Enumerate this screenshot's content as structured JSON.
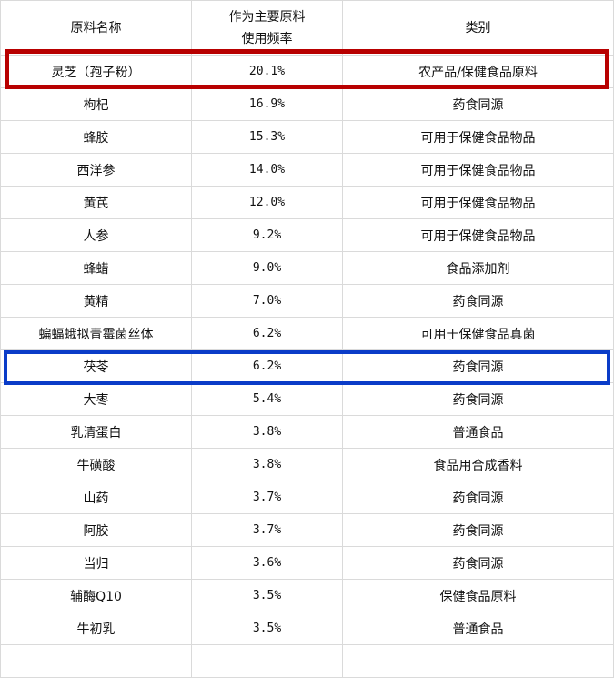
{
  "header": {
    "name": "原料名称",
    "freq_line1": "作为主要原料",
    "freq_line2": "使用频率",
    "category": "类别"
  },
  "rows": [
    {
      "name": "灵芝（孢子粉）",
      "freq": "20.1%",
      "category": "农产品/保健食品原料"
    },
    {
      "name": "枸杞",
      "freq": "16.9%",
      "category": "药食同源"
    },
    {
      "name": "蜂胶",
      "freq": "15.3%",
      "category": "可用于保健食品物品"
    },
    {
      "name": "西洋参",
      "freq": "14.0%",
      "category": "可用于保健食品物品"
    },
    {
      "name": "黄芪",
      "freq": "12.0%",
      "category": "可用于保健食品物品"
    },
    {
      "name": "人参",
      "freq": "9.2%",
      "category": "可用于保健食品物品"
    },
    {
      "name": "蜂蜡",
      "freq": "9.0%",
      "category": "食品添加剂"
    },
    {
      "name": "黄精",
      "freq": "7.0%",
      "category": "药食同源"
    },
    {
      "name": "蝙蝠蛾拟青霉菌丝体",
      "freq": "6.2%",
      "category": "可用于保健食品真菌"
    },
    {
      "name": "茯苓",
      "freq": "6.2%",
      "category": "药食同源"
    },
    {
      "name": "大枣",
      "freq": "5.4%",
      "category": "药食同源"
    },
    {
      "name": "乳清蛋白",
      "freq": "3.8%",
      "category": "普通食品"
    },
    {
      "name": "牛磺酸",
      "freq": "3.8%",
      "category": "食品用合成香料"
    },
    {
      "name": "山药",
      "freq": "3.7%",
      "category": "药食同源"
    },
    {
      "name": "阿胶",
      "freq": "3.7%",
      "category": "药食同源"
    },
    {
      "name": "当归",
      "freq": "3.6%",
      "category": "药食同源"
    },
    {
      "name": "辅酶Q10",
      "freq": "3.5%",
      "category": "保健食品原料"
    },
    {
      "name": "牛初乳",
      "freq": "3.5%",
      "category": "普通食品"
    }
  ],
  "highlights": {
    "red_row": "灵芝（孢子粉）",
    "red_color": "#b80000",
    "blue_row": "茯苓",
    "blue_color": "#0a3cc8"
  }
}
